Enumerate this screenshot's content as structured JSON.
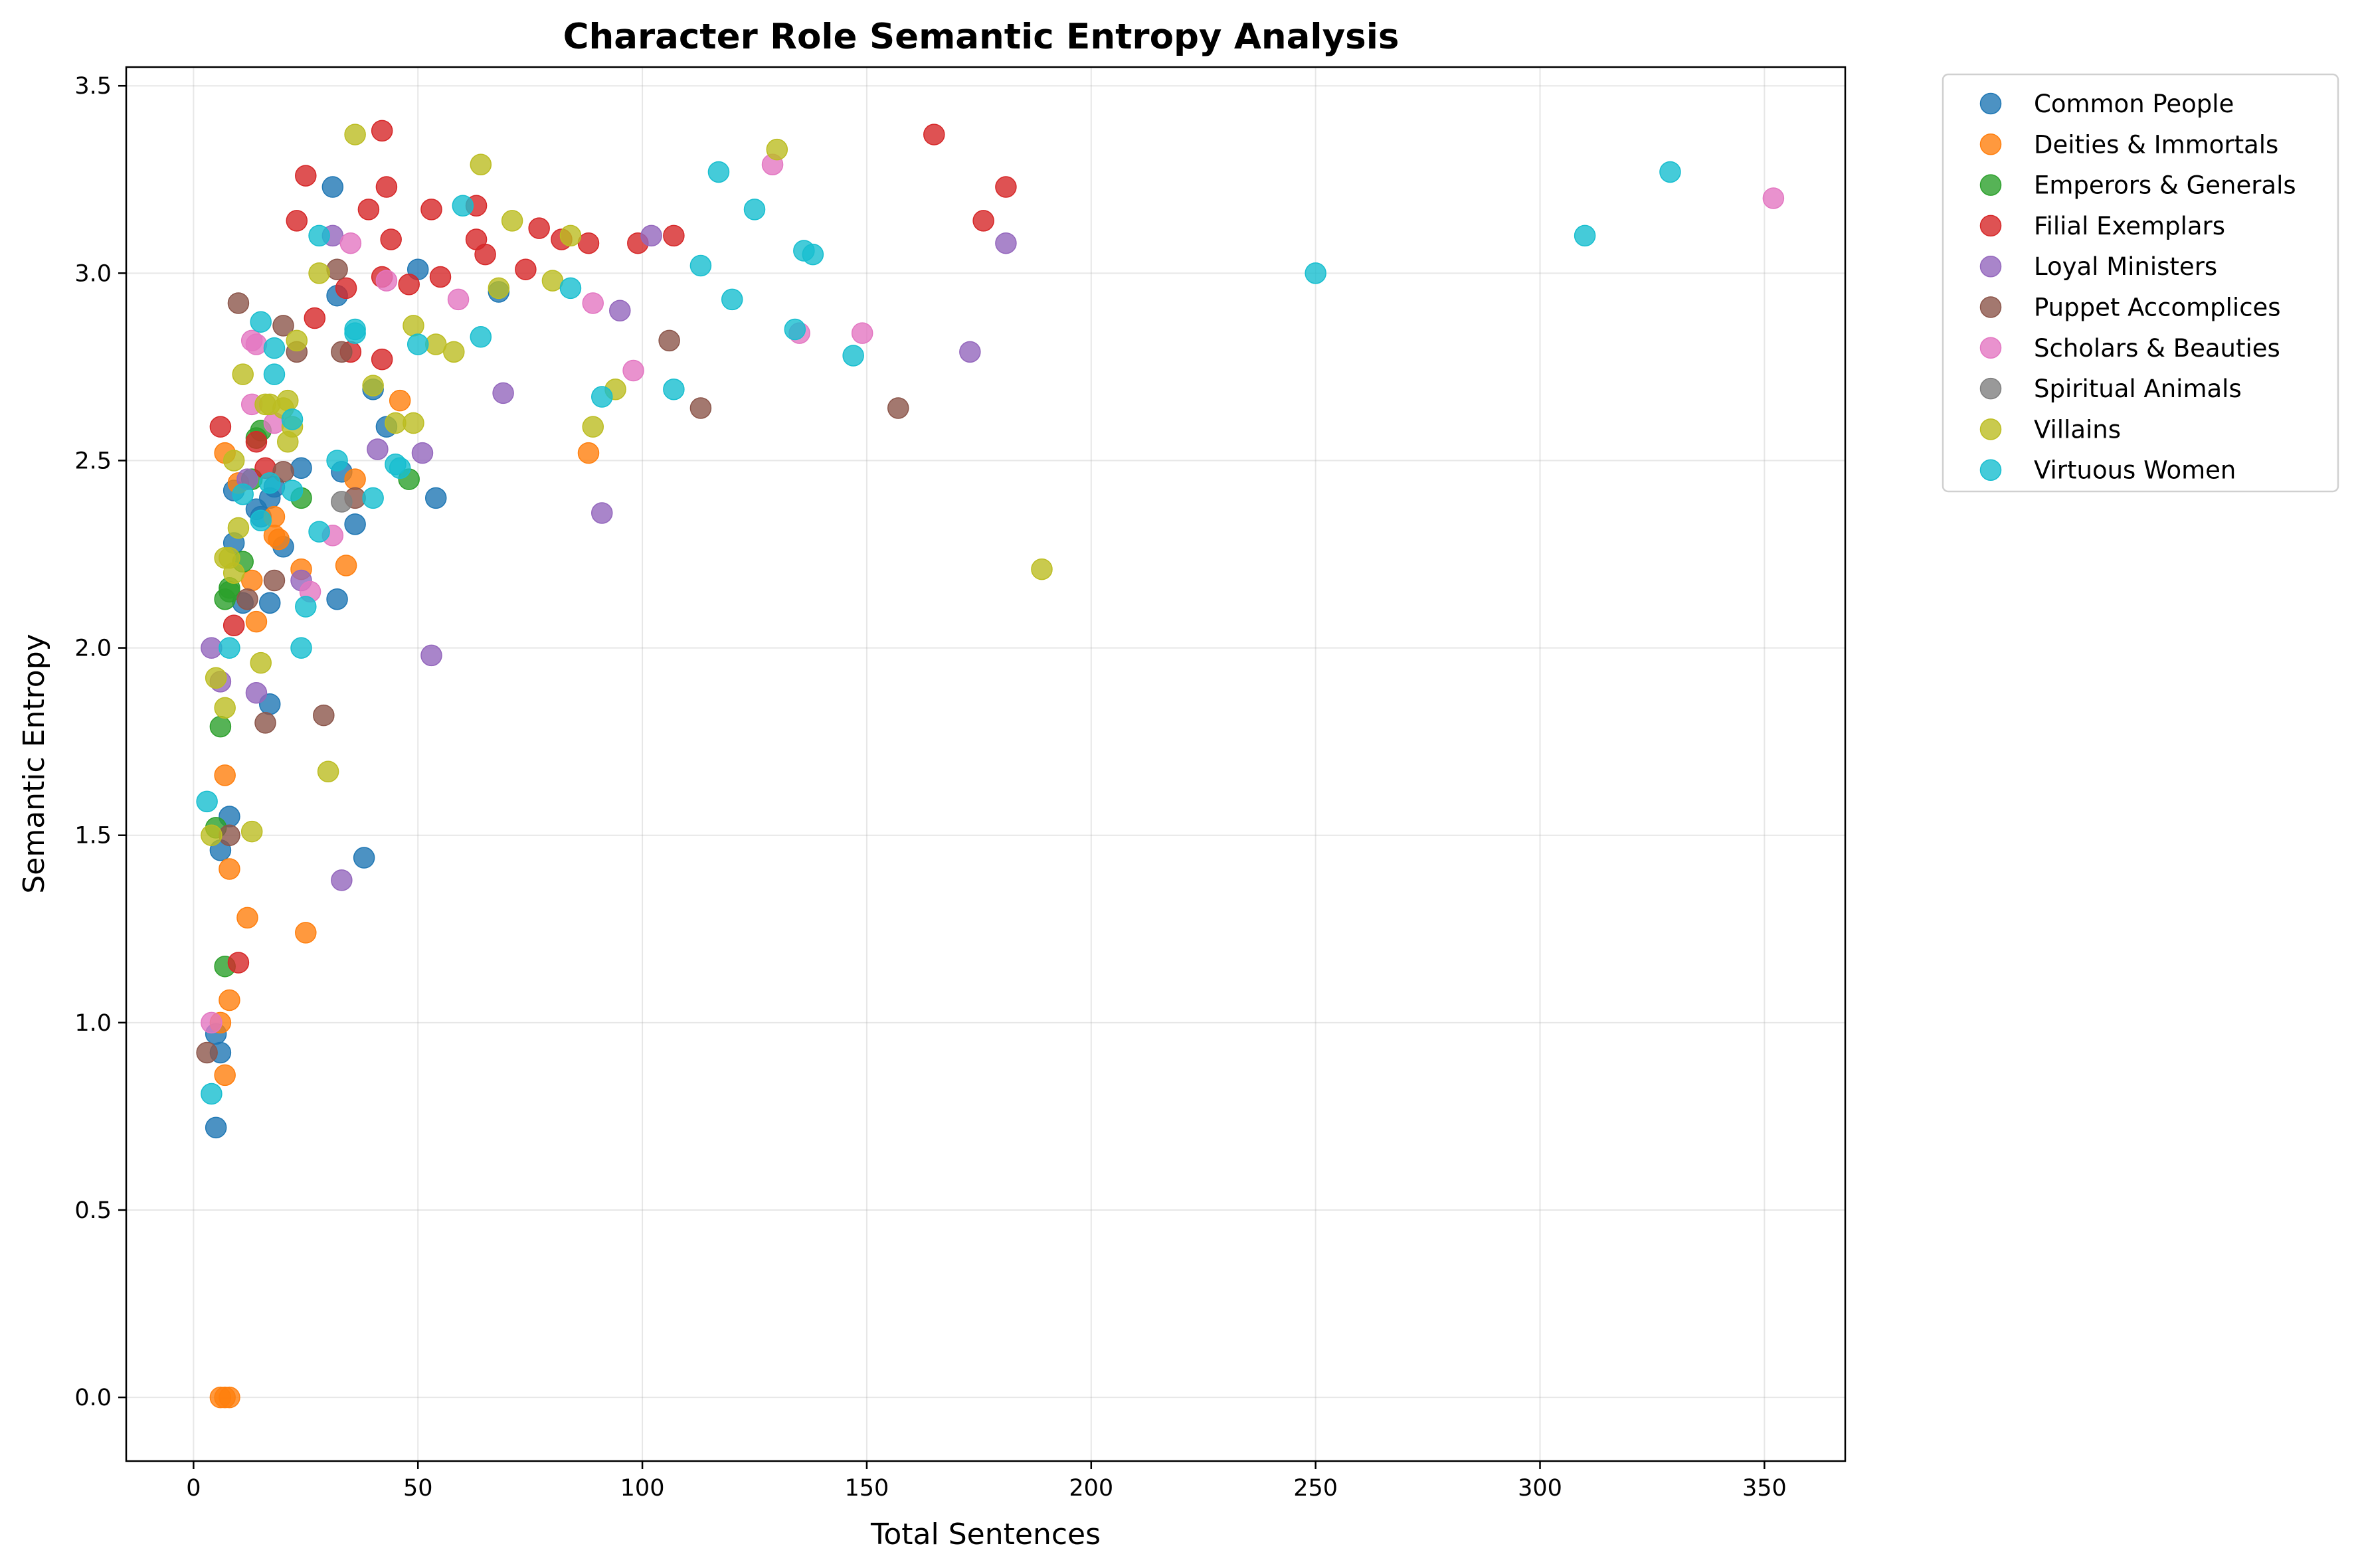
{
  "chart_data": {
    "type": "scatter",
    "title": "Character Role Semantic Entropy Analysis",
    "xlabel": "Total Sentences",
    "ylabel": "Semantic Entropy",
    "xlim": [
      -15,
      368
    ],
    "ylim": [
      -0.17,
      3.55
    ],
    "xticks": [
      0,
      50,
      100,
      150,
      200,
      250,
      300,
      350
    ],
    "yticks": [
      0.0,
      0.5,
      1.0,
      1.5,
      2.0,
      2.5,
      3.0,
      3.5
    ],
    "xtick_labels": [
      "0",
      "50",
      "100",
      "150",
      "200",
      "250",
      "300",
      "350"
    ],
    "ytick_labels": [
      "0.0",
      "0.5",
      "1.0",
      "1.5",
      "2.0",
      "2.5",
      "3.0",
      "3.5"
    ],
    "grid": true,
    "legend_position": "outside-right-top",
    "series": [
      {
        "name": "Common People",
        "color": "#1f77b4",
        "points": [
          [
            5,
            0.72
          ],
          [
            6,
            0.92
          ],
          [
            5,
            0.97
          ],
          [
            6,
            1.46
          ],
          [
            8,
            1.55
          ],
          [
            9,
            2.28
          ],
          [
            9,
            2.42
          ],
          [
            11,
            2.12
          ],
          [
            14,
            2.37
          ],
          [
            15,
            2.35
          ],
          [
            17,
            2.12
          ],
          [
            17,
            1.85
          ],
          [
            17,
            2.4
          ],
          [
            18,
            2.43
          ],
          [
            20,
            2.27
          ],
          [
            24,
            2.48
          ],
          [
            31,
            3.23
          ],
          [
            32,
            2.94
          ],
          [
            32,
            2.13
          ],
          [
            33,
            2.47
          ],
          [
            36,
            2.33
          ],
          [
            38,
            1.44
          ],
          [
            40,
            2.69
          ],
          [
            43,
            2.59
          ],
          [
            50,
            3.01
          ],
          [
            54,
            2.4
          ],
          [
            68,
            2.95
          ]
        ]
      },
      {
        "name": "Deities & Immortals",
        "color": "#ff7f0e",
        "points": [
          [
            6,
            0.0
          ],
          [
            7,
            0.0
          ],
          [
            8,
            0.0
          ],
          [
            6,
            1.0
          ],
          [
            7,
            0.86
          ],
          [
            8,
            1.06
          ],
          [
            8,
            1.41
          ],
          [
            7,
            1.66
          ],
          [
            12,
            1.28
          ],
          [
            13,
            2.18
          ],
          [
            14,
            2.07
          ],
          [
            18,
            2.3
          ],
          [
            18,
            2.35
          ],
          [
            19,
            2.29
          ],
          [
            24,
            2.21
          ],
          [
            25,
            1.24
          ],
          [
            34,
            2.22
          ],
          [
            36,
            2.45
          ],
          [
            46,
            2.66
          ],
          [
            88,
            2.52
          ],
          [
            7,
            2.52
          ],
          [
            10,
            2.44
          ]
        ]
      },
      {
        "name": "Emperors & Generals",
        "color": "#2ca02c",
        "points": [
          [
            5,
            1.52
          ],
          [
            6,
            1.79
          ],
          [
            7,
            1.15
          ],
          [
            7,
            2.13
          ],
          [
            8,
            2.15
          ],
          [
            8,
            2.16
          ],
          [
            11,
            2.23
          ],
          [
            13,
            2.45
          ],
          [
            14,
            2.56
          ],
          [
            15,
            2.58
          ],
          [
            24,
            2.4
          ],
          [
            48,
            2.45
          ]
        ]
      },
      {
        "name": "Filial Exemplars",
        "color": "#d62728",
        "points": [
          [
            6,
            2.59
          ],
          [
            9,
            2.06
          ],
          [
            10,
            1.16
          ],
          [
            14,
            2.55
          ],
          [
            16,
            2.48
          ],
          [
            23,
            3.14
          ],
          [
            25,
            3.26
          ],
          [
            27,
            2.88
          ],
          [
            34,
            2.96
          ],
          [
            35,
            2.79
          ],
          [
            39,
            3.17
          ],
          [
            42,
            3.38
          ],
          [
            42,
            2.99
          ],
          [
            42,
            2.77
          ],
          [
            43,
            3.23
          ],
          [
            44,
            3.09
          ],
          [
            48,
            2.97
          ],
          [
            53,
            3.17
          ],
          [
            55,
            2.99
          ],
          [
            63,
            3.18
          ],
          [
            63,
            3.09
          ],
          [
            65,
            3.05
          ],
          [
            74,
            3.01
          ],
          [
            77,
            3.12
          ],
          [
            82,
            3.09
          ],
          [
            88,
            3.08
          ],
          [
            99,
            3.08
          ],
          [
            107,
            3.1
          ],
          [
            165,
            3.37
          ],
          [
            176,
            3.14
          ],
          [
            181,
            3.23
          ]
        ]
      },
      {
        "name": "Loyal Ministers",
        "color": "#9467bd",
        "points": [
          [
            4,
            2.0
          ],
          [
            6,
            1.91
          ],
          [
            12,
            2.45
          ],
          [
            14,
            1.88
          ],
          [
            24,
            2.18
          ],
          [
            31,
            3.1
          ],
          [
            33,
            1.38
          ],
          [
            41,
            2.53
          ],
          [
            51,
            2.52
          ],
          [
            53,
            1.98
          ],
          [
            69,
            2.68
          ],
          [
            91,
            2.36
          ],
          [
            95,
            2.9
          ],
          [
            102,
            3.1
          ],
          [
            173,
            2.79
          ],
          [
            181,
            3.08
          ]
        ]
      },
      {
        "name": "Puppet Accomplices",
        "color": "#8c564b",
        "points": [
          [
            3,
            0.92
          ],
          [
            8,
            1.5
          ],
          [
            10,
            2.92
          ],
          [
            12,
            2.13
          ],
          [
            16,
            1.8
          ],
          [
            18,
            2.18
          ],
          [
            20,
            2.47
          ],
          [
            20,
            2.86
          ],
          [
            23,
            2.79
          ],
          [
            29,
            1.82
          ],
          [
            32,
            3.01
          ],
          [
            33,
            2.79
          ],
          [
            36,
            2.4
          ],
          [
            106,
            2.82
          ],
          [
            113,
            2.64
          ],
          [
            157,
            2.64
          ]
        ]
      },
      {
        "name": "Scholars & Beauties",
        "color": "#e377c2",
        "points": [
          [
            4,
            1.0
          ],
          [
            13,
            2.82
          ],
          [
            13,
            2.65
          ],
          [
            14,
            2.81
          ],
          [
            18,
            2.6
          ],
          [
            26,
            2.15
          ],
          [
            31,
            2.3
          ],
          [
            35,
            3.08
          ],
          [
            43,
            2.98
          ],
          [
            59,
            2.93
          ],
          [
            89,
            2.92
          ],
          [
            98,
            2.74
          ],
          [
            129,
            3.29
          ],
          [
            135,
            2.84
          ],
          [
            149,
            2.84
          ],
          [
            352,
            3.2
          ]
        ]
      },
      {
        "name": "Spiritual Animals",
        "color": "#7f7f7f",
        "points": [
          [
            33,
            2.39
          ]
        ]
      },
      {
        "name": "Villains",
        "color": "#bcbd22",
        "points": [
          [
            4,
            1.5
          ],
          [
            5,
            1.92
          ],
          [
            7,
            1.84
          ],
          [
            7,
            2.24
          ],
          [
            8,
            2.24
          ],
          [
            9,
            2.5
          ],
          [
            9,
            2.2
          ],
          [
            10,
            2.32
          ],
          [
            11,
            2.73
          ],
          [
            13,
            1.51
          ],
          [
            15,
            1.96
          ],
          [
            16,
            2.65
          ],
          [
            17,
            2.65
          ],
          [
            20,
            2.64
          ],
          [
            21,
            2.55
          ],
          [
            21,
            2.66
          ],
          [
            22,
            2.59
          ],
          [
            23,
            2.82
          ],
          [
            28,
            3.0
          ],
          [
            30,
            1.67
          ],
          [
            36,
            3.37
          ],
          [
            40,
            2.7
          ],
          [
            45,
            2.6
          ],
          [
            49,
            2.6
          ],
          [
            49,
            2.86
          ],
          [
            54,
            2.81
          ],
          [
            58,
            2.79
          ],
          [
            64,
            3.29
          ],
          [
            68,
            2.96
          ],
          [
            71,
            3.14
          ],
          [
            80,
            2.98
          ],
          [
            84,
            3.1
          ],
          [
            89,
            2.59
          ],
          [
            94,
            2.69
          ],
          [
            130,
            3.33
          ],
          [
            189,
            2.21
          ]
        ]
      },
      {
        "name": "Virtuous Women",
        "color": "#17becf",
        "points": [
          [
            3,
            1.59
          ],
          [
            4,
            0.81
          ],
          [
            8,
            2.0
          ],
          [
            11,
            2.41
          ],
          [
            15,
            2.87
          ],
          [
            15,
            2.34
          ],
          [
            17,
            2.44
          ],
          [
            18,
            2.73
          ],
          [
            18,
            2.8
          ],
          [
            22,
            2.61
          ],
          [
            22,
            2.42
          ],
          [
            24,
            2.0
          ],
          [
            25,
            2.11
          ],
          [
            28,
            3.1
          ],
          [
            28,
            2.31
          ],
          [
            32,
            2.5
          ],
          [
            36,
            2.85
          ],
          [
            36,
            2.84
          ],
          [
            40,
            2.4
          ],
          [
            45,
            2.49
          ],
          [
            46,
            2.48
          ],
          [
            50,
            2.81
          ],
          [
            60,
            3.18
          ],
          [
            64,
            2.83
          ],
          [
            84,
            2.96
          ],
          [
            91,
            2.67
          ],
          [
            107,
            2.69
          ],
          [
            113,
            3.02
          ],
          [
            117,
            3.27
          ],
          [
            120,
            2.93
          ],
          [
            125,
            3.17
          ],
          [
            134,
            2.85
          ],
          [
            136,
            3.06
          ],
          [
            138,
            3.05
          ],
          [
            147,
            2.78
          ],
          [
            250,
            3.0
          ],
          [
            310,
            3.1
          ],
          [
            329,
            3.27
          ]
        ]
      }
    ]
  }
}
